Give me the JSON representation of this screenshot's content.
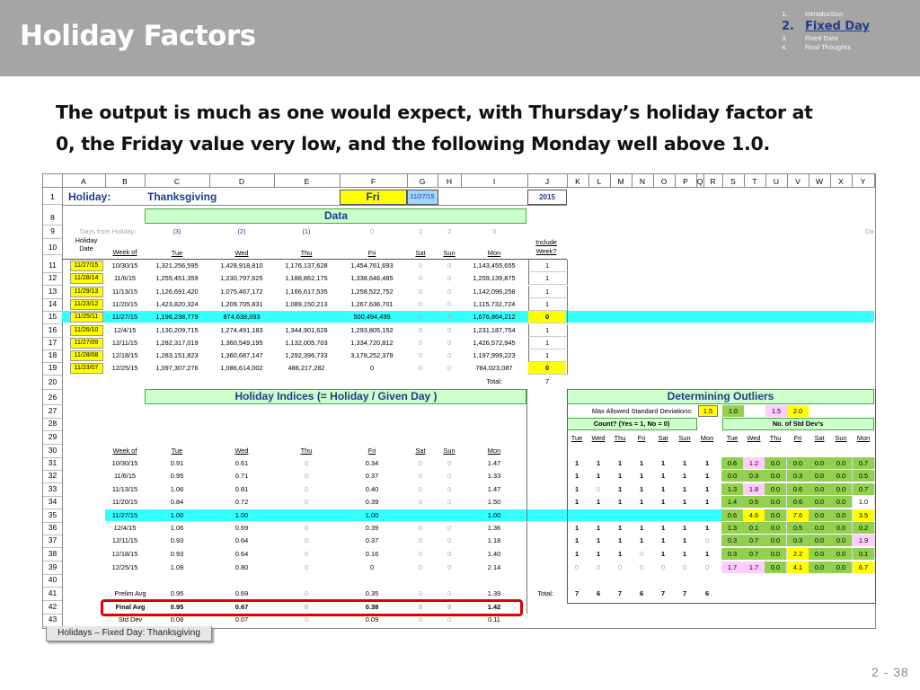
{
  "slide": {
    "title": "Holiday Factors",
    "nav": [
      {
        "num": "1.",
        "label": "Introduction"
      },
      {
        "num": "2.",
        "label": "Fixed Day"
      },
      {
        "num": "3.",
        "label": "Fixed Date"
      },
      {
        "num": "4.",
        "label": "Final Thoughts"
      }
    ],
    "headline_line1": "The output is much as one would expect, with Thursday’s holiday factor at",
    "headline_line2": "0, the Friday value very low, and the following Monday well above 1.0.",
    "sheet_tab": "Holidays – Fixed Day: Thanksgiving",
    "page_number": "2 - 38"
  },
  "sheet": {
    "columns": [
      "A",
      "B",
      "C",
      "D",
      "E",
      "F",
      "G",
      "H",
      "I",
      "J",
      "K",
      "L",
      "M",
      "N",
      "O",
      "P",
      "Q",
      "R",
      "S",
      "T",
      "U",
      "V",
      "W",
      "X",
      "Y"
    ],
    "row_numbers": [
      "1",
      "8",
      "9",
      "10",
      "11",
      "12",
      "13",
      "14",
      "15",
      "16",
      "17",
      "18",
      "19",
      "20",
      "26",
      "27",
      "28",
      "29",
      "30",
      "31",
      "32",
      "33",
      "34",
      "35",
      "36",
      "37",
      "38",
      "39",
      "40",
      "41",
      "42",
      "43"
    ],
    "row1": {
      "holiday_label": "Holiday:",
      "holiday_value": "Thanksgiving",
      "day_abbr": "Fri",
      "date": "11/27/15",
      "year": "2015"
    },
    "data_header": "Data",
    "days_from_label": "Days from Holiday:",
    "days_from_values": [
      "(3)",
      "(2)",
      "(1)",
      "0",
      "1",
      "2",
      "3"
    ],
    "days_from_trailing": "Da",
    "header_row": {
      "holiday_date": "Holiday Date",
      "week_of": "Week of",
      "days": [
        "Tue",
        "Wed",
        "Thu",
        "Fri",
        "Sat",
        "Sun",
        "Mon"
      ],
      "include": "Include Week?"
    },
    "data_rows": [
      {
        "hd": "11/27/15",
        "wk": "10/30/15",
        "v": [
          "1,321,256,595",
          "1,428,918,810",
          "1,176,137,628",
          "1,454,761,693",
          "0",
          "0",
          "1,143,455,655"
        ],
        "inc": "1"
      },
      {
        "hd": "11/28/14",
        "wk": "11/6/15",
        "v": [
          "1,255,451,359",
          "1,230,797,625",
          "1,188,862,175",
          "1,338,646,485",
          "0",
          "0",
          "1,259,139,875"
        ],
        "inc": "1"
      },
      {
        "hd": "11/29/13",
        "wk": "11/13/15",
        "v": [
          "1,126,691,420",
          "1,075,467,172",
          "1,166,617,535",
          "1,258,522,752",
          "0",
          "0",
          "1,142,096,258"
        ],
        "inc": "1"
      },
      {
        "hd": "11/23/12",
        "wk": "11/20/15",
        "v": [
          "1,423,820,324",
          "1,209,705,831",
          "1,089,150,213",
          "1,267,636,701",
          "0",
          "0",
          "1,115,732,724"
        ],
        "inc": "1"
      },
      {
        "hd": "11/25/11",
        "wk": "11/27/15",
        "v": [
          "1,196,238,779",
          "874,638,093",
          "",
          "500,494,499",
          "0",
          "0",
          "1,676,864,212"
        ],
        "inc": "0"
      },
      {
        "hd": "11/26/10",
        "wk": "12/4/15",
        "v": [
          "1,130,209,715",
          "1,274,491,183",
          "1,344,901,628",
          "1,293,805,152",
          "0",
          "0",
          "1,231,187,754"
        ],
        "inc": "1"
      },
      {
        "hd": "11/27/09",
        "wk": "12/11/15",
        "v": [
          "1,282,317,019",
          "1,360,549,195",
          "1,132,005,703",
          "1,334,720,812",
          "0",
          "0",
          "1,426,572,945"
        ],
        "inc": "1"
      },
      {
        "hd": "11/28/08",
        "wk": "12/18/15",
        "v": [
          "1,283,151,823",
          "1,360,687,147",
          "1,292,396,733",
          "3,178,252,379",
          "0",
          "0",
          "1,197,999,223"
        ],
        "inc": "1"
      },
      {
        "hd": "11/23/07",
        "wk": "12/25/15",
        "v": [
          "1,097,307,276",
          "1,086,614,002",
          "488,217,282",
          "0",
          "0",
          "0",
          "784,023,087"
        ],
        "inc": "0"
      }
    ],
    "total_label": "Total:",
    "total_value": "7",
    "indices_header": "Holiday Indices  (= Holiday / Given Day )",
    "outliers_header": "Determining Outliers",
    "max_std_label": "Max Allowed Standard Deviations:",
    "max_std_values": [
      "1.5",
      "1.0",
      "",
      "1.5",
      "2.0"
    ],
    "count_header": "Count?  (Yes = 1, No = 0)",
    "nstd_header": "No. of Std Dev's",
    "outlier_days": [
      "Tue",
      "Wed",
      "Thu",
      "Fri",
      "Sat",
      "Sun",
      "Mon"
    ],
    "index_rows": [
      {
        "wk": "10/30/15",
        "v": [
          "0.91",
          "0.61",
          "0",
          "0.34",
          "0",
          "0",
          "1.47"
        ],
        "cnt": [
          "1",
          "1",
          "1",
          "1",
          "1",
          "1",
          "1"
        ],
        "sd": [
          "0.6",
          "1.2",
          "0.0",
          "0.0",
          "0.0",
          "0.0",
          "0.7"
        ]
      },
      {
        "wk": "11/6/15",
        "v": [
          "0.95",
          "0.71",
          "0",
          "0.37",
          "0",
          "0",
          "1.33"
        ],
        "cnt": [
          "1",
          "1",
          "1",
          "1",
          "1",
          "1",
          "1"
        ],
        "sd": [
          "0.0",
          "0.3",
          "0.0",
          "0.3",
          "0.0",
          "0.0",
          "0.5"
        ]
      },
      {
        "wk": "11/13/15",
        "v": [
          "1.06",
          "0.81",
          "0",
          "0.40",
          "0",
          "0",
          "1.47"
        ],
        "cnt": [
          "1",
          "0",
          "1",
          "1",
          "1",
          "1",
          "1"
        ],
        "sd": [
          "1.3",
          "1.8",
          "0.0",
          "0.6",
          "0.0",
          "0.0",
          "0.7"
        ]
      },
      {
        "wk": "11/20/15",
        "v": [
          "0.84",
          "0.72",
          "0",
          "0.39",
          "0",
          "0",
          "1.50"
        ],
        "cnt": [
          "1",
          "1",
          "1",
          "1",
          "1",
          "1",
          "1"
        ],
        "sd": [
          "1.4",
          "0.5",
          "0.0",
          "0.6",
          "0.0",
          "0.0",
          "1.0"
        ]
      },
      {
        "wk": "11/27/15",
        "v": [
          "1.00",
          "1.00",
          "",
          "1.00",
          "",
          "",
          "1.00"
        ],
        "cnt": [
          "",
          "",
          "",
          "",
          "",
          "",
          ""
        ],
        "sd": [
          "0.6",
          "4.6",
          "0.0",
          "7.6",
          "0.0",
          "0.0",
          "3.5"
        ]
      },
      {
        "wk": "12/4/15",
        "v": [
          "1.06",
          "0.69",
          "0",
          "0.39",
          "0",
          "0",
          "1.36"
        ],
        "cnt": [
          "1",
          "1",
          "1",
          "1",
          "1",
          "1",
          "1"
        ],
        "sd": [
          "1.3",
          "0.1",
          "0.0",
          "0.5",
          "0.0",
          "0.0",
          "0.2"
        ]
      },
      {
        "wk": "12/11/15",
        "v": [
          "0.93",
          "0.64",
          "0",
          "0.37",
          "0",
          "0",
          "1.18"
        ],
        "cnt": [
          "1",
          "1",
          "1",
          "1",
          "1",
          "1",
          "0"
        ],
        "sd": [
          "0.3",
          "0.7",
          "0.0",
          "0.3",
          "0.0",
          "0.0",
          "1.9"
        ]
      },
      {
        "wk": "12/18/15",
        "v": [
          "0.93",
          "0.64",
          "0",
          "0.16",
          "0",
          "0",
          "1.40"
        ],
        "cnt": [
          "1",
          "1",
          "1",
          "0",
          "1",
          "1",
          "1"
        ],
        "sd": [
          "0.3",
          "0.7",
          "0.0",
          "2.2",
          "0.0",
          "0.0",
          "0.1"
        ]
      },
      {
        "wk": "12/25/15",
        "v": [
          "1.09",
          "0.80",
          "0",
          "0",
          "0",
          "0",
          "2.14"
        ],
        "cnt": [
          "0",
          "0",
          "0",
          "0",
          "0",
          "0",
          "0"
        ],
        "sd": [
          "1.7",
          "1.7",
          "0.0",
          "4.1",
          "0.0",
          "0.0",
          "6.7"
        ]
      }
    ],
    "count_total_label": "Total:",
    "count_totals": [
      "7",
      "6",
      "7",
      "6",
      "7",
      "7",
      "6"
    ],
    "prelim": {
      "label": "Prelim Avg",
      "v": [
        "0.95",
        "0.69",
        "0",
        "0.35",
        "0",
        "0",
        "1.39"
      ]
    },
    "final": {
      "label": "Final Avg",
      "v": [
        "0.95",
        "0.67",
        "0",
        "0.38",
        "0",
        "0",
        "1.42"
      ]
    },
    "stddev": {
      "label": "Std Dev",
      "v": [
        "0.08",
        "0.07",
        "0",
        "0.09",
        "0",
        "0",
        "0.11"
      ]
    }
  },
  "colors": {
    "header_bg": "#a5a5a5",
    "section_green": "#ccffcc",
    "highlight_cyan": "#33ffff",
    "holiday_yellow": "#ffff00",
    "outlier_green": "#92d050",
    "outlier_pink": "#ffccff",
    "callout_red": "#e00000",
    "nav_active": "#1f3d8a"
  }
}
